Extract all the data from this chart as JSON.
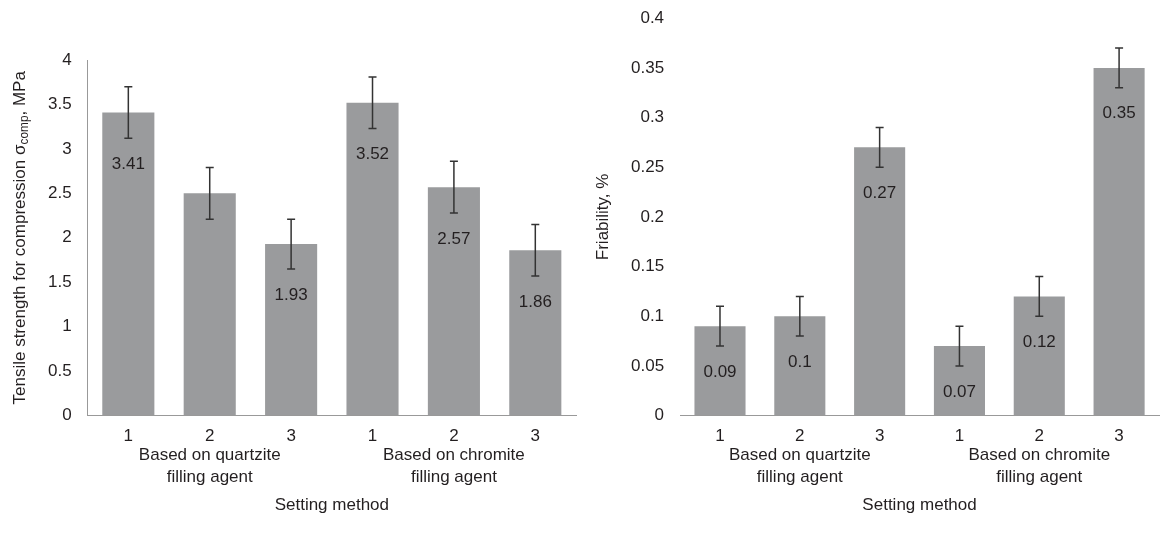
{
  "chart_data": [
    {
      "type": "bar",
      "ylabel": "Tensile strength for compression σ$_{comp}$, MPa",
      "xlabel": "Setting method",
      "categories": [
        "1",
        "2",
        "3",
        "1",
        "2",
        "3"
      ],
      "values": [
        3.41,
        2.5,
        1.93,
        3.52,
        2.57,
        1.86
      ],
      "color": "#9a9b9d",
      "errors": [
        0.29,
        0.29,
        0.28,
        0.29,
        0.29,
        0.29
      ],
      "value_labels": [
        "3.41",
        null,
        "1.93",
        "3.52",
        "2.57",
        "1.86"
      ],
      "ylim": [
        0,
        4
      ],
      "yticks": [
        0,
        0.5,
        1,
        1.5,
        2,
        2.5,
        3,
        3.5,
        4
      ],
      "grid": false,
      "legend": false,
      "annotations": [
        "Based on quartzite filling agent",
        "Based on chromite filling agent"
      ]
    },
    {
      "type": "bar",
      "ylabel": "Friability, %",
      "xlabel": "Setting method",
      "categories": [
        "1",
        "2",
        "3",
        "1",
        "2",
        "3"
      ],
      "values": [
        0.09,
        0.1,
        0.27,
        0.07,
        0.12,
        0.35
      ],
      "color": "#9a9b9d",
      "errors": [
        0.02,
        0.02,
        0.02,
        0.02,
        0.02,
        0.02
      ],
      "data_labels": true,
      "ylim": [
        0,
        0.4
      ],
      "yticks": [
        0,
        0.05,
        0.1,
        0.15,
        0.2,
        0.25,
        0.3,
        0.35,
        0.4
      ],
      "grid": false,
      "legend": false,
      "annotations": [
        "Based on quartzite filling agent",
        "Based on chromite filling agent"
      ]
    }
  ]
}
